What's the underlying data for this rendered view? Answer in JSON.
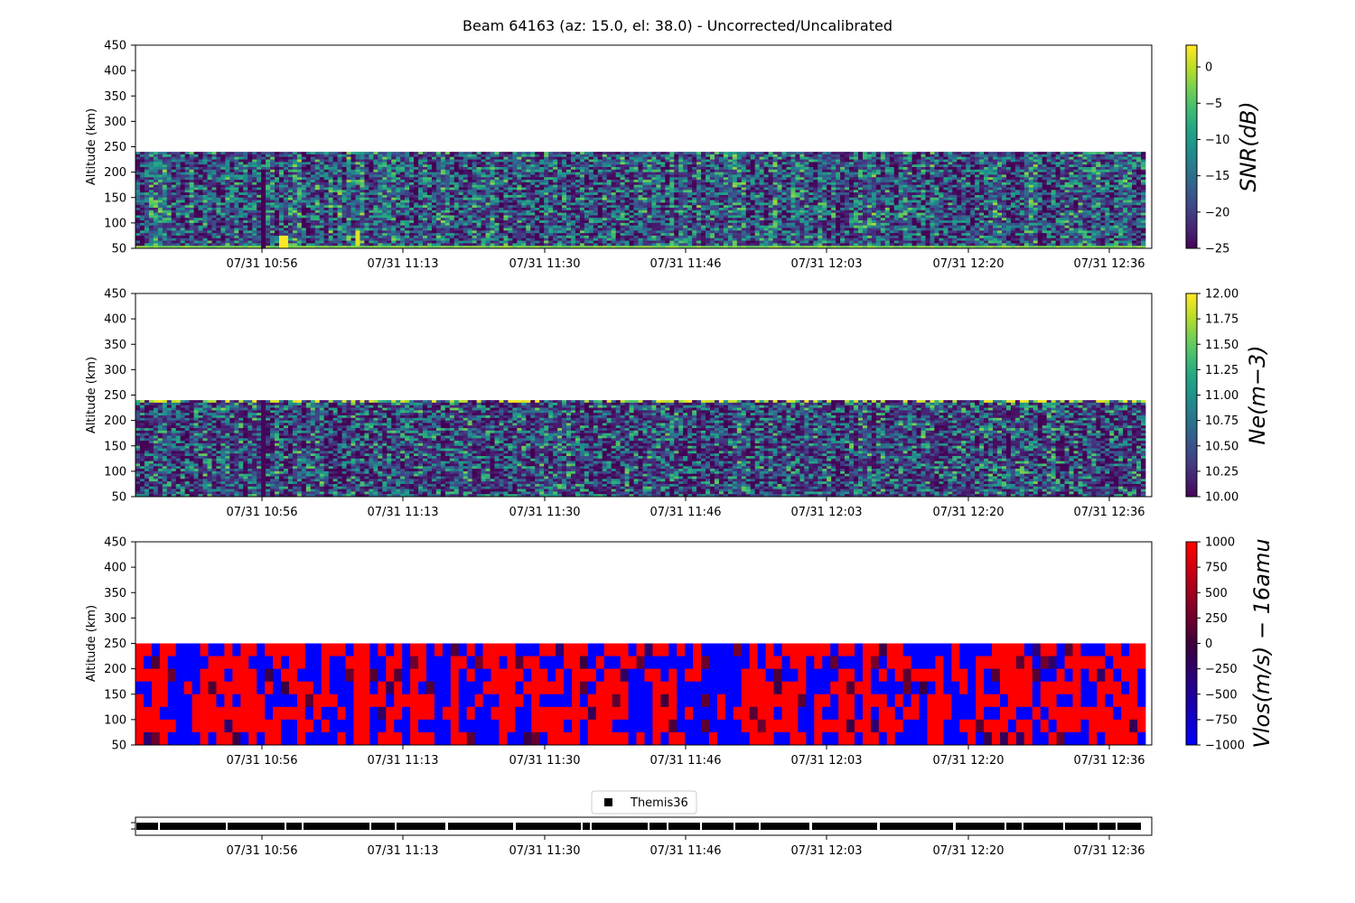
{
  "figure": {
    "title": "Beam 64163 (az: 15.0, el: 38.0) - Uncorrected/Uncalibrated"
  },
  "x_tick_labels": [
    "07/31 10:56",
    "07/31 11:13",
    "07/31 11:30",
    "07/31 11:46",
    "07/31 12:03",
    "07/31 12:20",
    "07/31 12:36"
  ],
  "chart_data": [
    {
      "type": "heatmap",
      "name": "SNR",
      "ylabel": "Altitude (km)",
      "ylim": [
        50,
        450
      ],
      "yticks": [
        50,
        100,
        150,
        200,
        250,
        300,
        350,
        400,
        450
      ],
      "colorbar": {
        "label": "SNR(dB)",
        "min": -25,
        "max": 3,
        "ticks": [
          0,
          -5,
          -10,
          -15,
          -20,
          -25
        ],
        "tick_labels": [
          "0",
          "−5",
          "−10",
          "−15",
          "−20",
          "−25"
        ],
        "colormap": "viridis"
      },
      "data_extent": {
        "altitude_top_km": 240,
        "altitude_bottom_km": 50
      },
      "notes": "Noisy SNR values between −25 and 0 dB; bright (near 0 dB) near 55 km; dark dropout column near 10:56."
    },
    {
      "type": "heatmap",
      "name": "Ne",
      "ylabel": "Altitude (km)",
      "ylim": [
        50,
        450
      ],
      "yticks": [
        50,
        100,
        150,
        200,
        250,
        300,
        350,
        400,
        450
      ],
      "colorbar": {
        "label": "Ne(m−3)",
        "min": 10.0,
        "max": 12.0,
        "ticks": [
          12.0,
          11.75,
          11.5,
          11.25,
          11.0,
          10.75,
          10.5,
          10.25,
          10.0
        ],
        "tick_labels": [
          "12.00",
          "11.75",
          "11.50",
          "11.25",
          "11.00",
          "10.75",
          "10.50",
          "10.25",
          "10.00"
        ],
        "colormap": "viridis"
      },
      "data_extent": {
        "altitude_top_km": 240,
        "altitude_bottom_km": 50
      }
    },
    {
      "type": "heatmap",
      "name": "Vlos",
      "ylabel": "Altitude (km)",
      "ylim": [
        50,
        450
      ],
      "yticks": [
        50,
        100,
        150,
        200,
        250,
        300,
        350,
        400,
        450
      ],
      "colorbar": {
        "label": "Vlos(m/s) − 16amu",
        "min": -1000,
        "max": 1000,
        "ticks": [
          1000,
          750,
          500,
          250,
          0,
          -250,
          -500,
          -750,
          -1000
        ],
        "tick_labels": [
          "1000",
          "750",
          "500",
          "250",
          "0",
          "−250",
          "−500",
          "−750",
          "−1000"
        ],
        "colormap": "bwr-saturated"
      },
      "data_extent": {
        "altitude_top_km": 250,
        "altitude_bottom_km": 50
      }
    },
    {
      "type": "timeline",
      "name": "Themis36",
      "legend": "Themis36",
      "legend_marker": "square",
      "color": "#000000"
    }
  ],
  "colors": {
    "viridis_dark": "#440154",
    "viridis_bright": "#fde725",
    "vlos_red": "#ff0000",
    "vlos_blue": "#0000ff"
  }
}
